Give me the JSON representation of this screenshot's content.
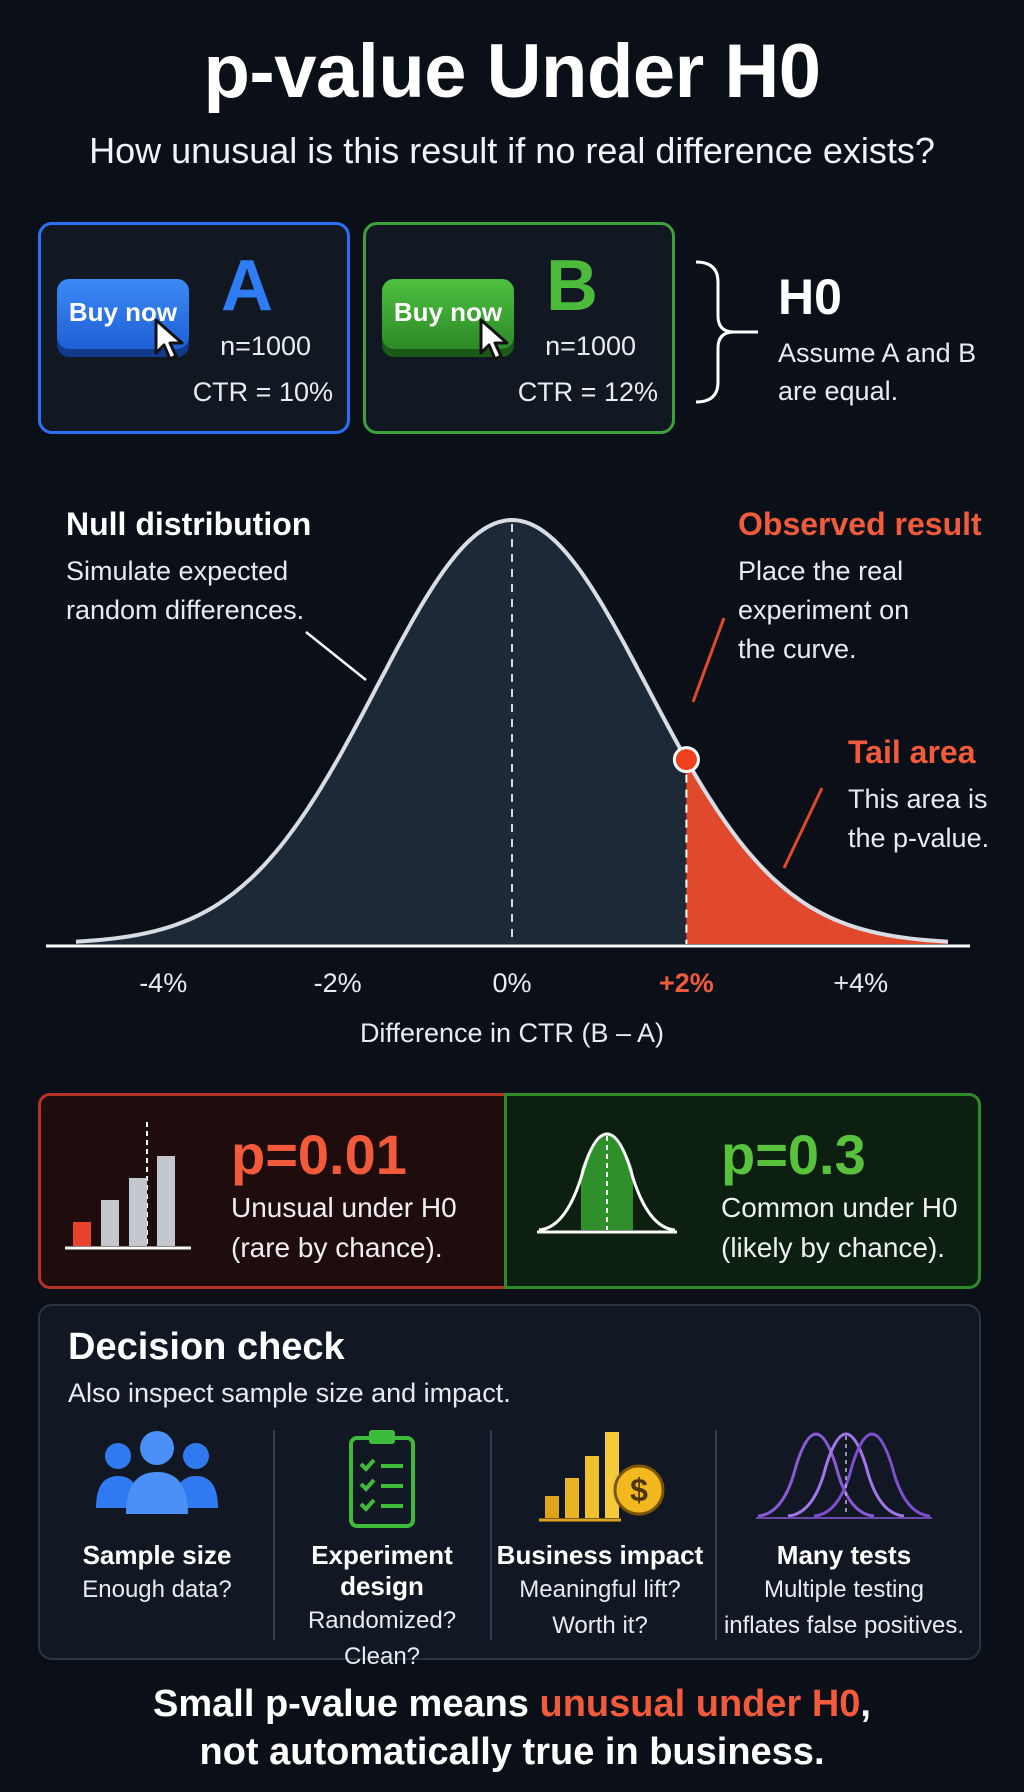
{
  "header": {
    "title": "p-value Under H0",
    "subtitle": "How unusual is this result if no real difference exists?"
  },
  "variants": [
    {
      "button_label": "Buy now",
      "letter": "A",
      "n": "n=1000",
      "ctr": "CTR = 10%",
      "color": "#2d6ff2"
    },
    {
      "button_label": "Buy now",
      "letter": "B",
      "n": "n=1000",
      "ctr": "CTR = 12%",
      "color": "#3ca03c"
    }
  ],
  "hypothesis": {
    "title": "H0",
    "text": "Assume A and B are equal."
  },
  "chart_data": {
    "type": "area",
    "xlabel": "Difference in CTR (B – A)",
    "tick_labels": [
      "-4%",
      "-2%",
      "0%",
      "+2%",
      "+4%"
    ],
    "ticks": [
      -4,
      -2,
      0,
      2,
      4
    ],
    "xlim": [
      -5,
      5
    ],
    "distribution": "normal",
    "mean": 0,
    "sd": 1.55,
    "observed": 2,
    "highlight_tick": "+2%",
    "tail_from": 2,
    "annotations": [
      {
        "title": "Null distribution",
        "text": "Simulate expected random differences."
      },
      {
        "title": "Observed result",
        "text": "Place the real experiment on the curve."
      },
      {
        "title": "Tail area",
        "text": "This area is the p-value."
      }
    ],
    "colors": {
      "curve": "#d8dde4",
      "fill": "#1e2937",
      "tail": "#e0492c",
      "accent": "#f25a3c"
    }
  },
  "pvalues": [
    {
      "value": "p=0.01",
      "line1": "Unusual under H0",
      "line2": "(rare by chance).",
      "color": "#f25a3c"
    },
    {
      "value": "p=0.3",
      "line1": "Common under H0",
      "line2": "(likely by chance).",
      "color": "#59c23c"
    }
  ],
  "decision": {
    "title": "Decision check",
    "subtitle": "Also inspect sample size and impact.",
    "items": [
      {
        "icon": "people-icon",
        "title": "Sample size",
        "line1": "Enough data?",
        "line2": ""
      },
      {
        "icon": "clipboard-checklist-icon",
        "title": "Experiment design",
        "line1": "Randomized?",
        "line2": "Clean?"
      },
      {
        "icon": "bar-chart-dollar-icon",
        "title": "Business impact",
        "line1": "Meaningful lift?",
        "line2": "Worth it?"
      },
      {
        "icon": "multiple-curves-icon",
        "title": "Many tests",
        "line1": "Multiple testing",
        "line2": "inflates false positives."
      }
    ]
  },
  "footer": {
    "pre": "Small p-value means ",
    "highlight": "unusual under H0",
    "post": ",",
    "line2": "not automatically true in business."
  }
}
